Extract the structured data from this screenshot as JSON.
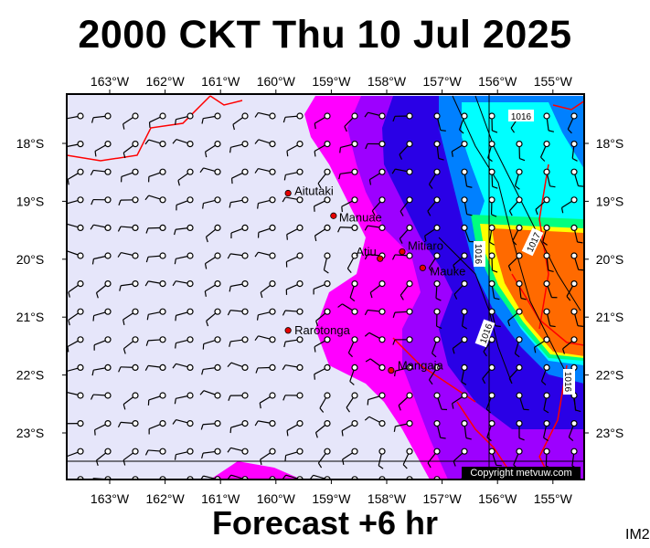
{
  "title": "2000 CKT Thu 10 Jul 2025",
  "subtitle": "Forecast +6 hr",
  "corner_label": "IM2",
  "copyright": "Copyright metvuw.com",
  "lon_labels": [
    "163°W",
    "162°W",
    "161°W",
    "160°W",
    "159°W",
    "158°W",
    "157°W",
    "156°W",
    "155°W"
  ],
  "lat_labels": [
    "18°S",
    "19°S",
    "20°S",
    "21°S",
    "22°S",
    "23°S"
  ],
  "places": [
    {
      "name": "Aitutaki",
      "lon": -159.78,
      "lat": -18.86
    },
    {
      "name": "Manuae",
      "lon": -158.96,
      "lat": -19.25
    },
    {
      "name": "Mitiaro",
      "lon": -157.72,
      "lat": -19.87
    },
    {
      "name": "Atiu",
      "lon": -158.12,
      "lat": -19.99
    },
    {
      "name": "Mauke",
      "lon": -157.35,
      "lat": -20.15
    },
    {
      "name": "Rarotonga",
      "lon": -159.78,
      "lat": -21.23
    },
    {
      "name": "Mangaia",
      "lon": -157.92,
      "lat": -21.92
    }
  ],
  "isobars": [
    "1016",
    "1016",
    "1017",
    "1016",
    "1016"
  ],
  "colors": {
    "background": "#e6e6fa",
    "coast": "#ff0000",
    "magenta": "#ff00ff",
    "purple": "#9d00ff",
    "blue": "#2a00e6",
    "lightblue": "#0080ff",
    "cyan": "#00ffff",
    "yellow": "#ffff00",
    "orange": "#ff6a00"
  }
}
